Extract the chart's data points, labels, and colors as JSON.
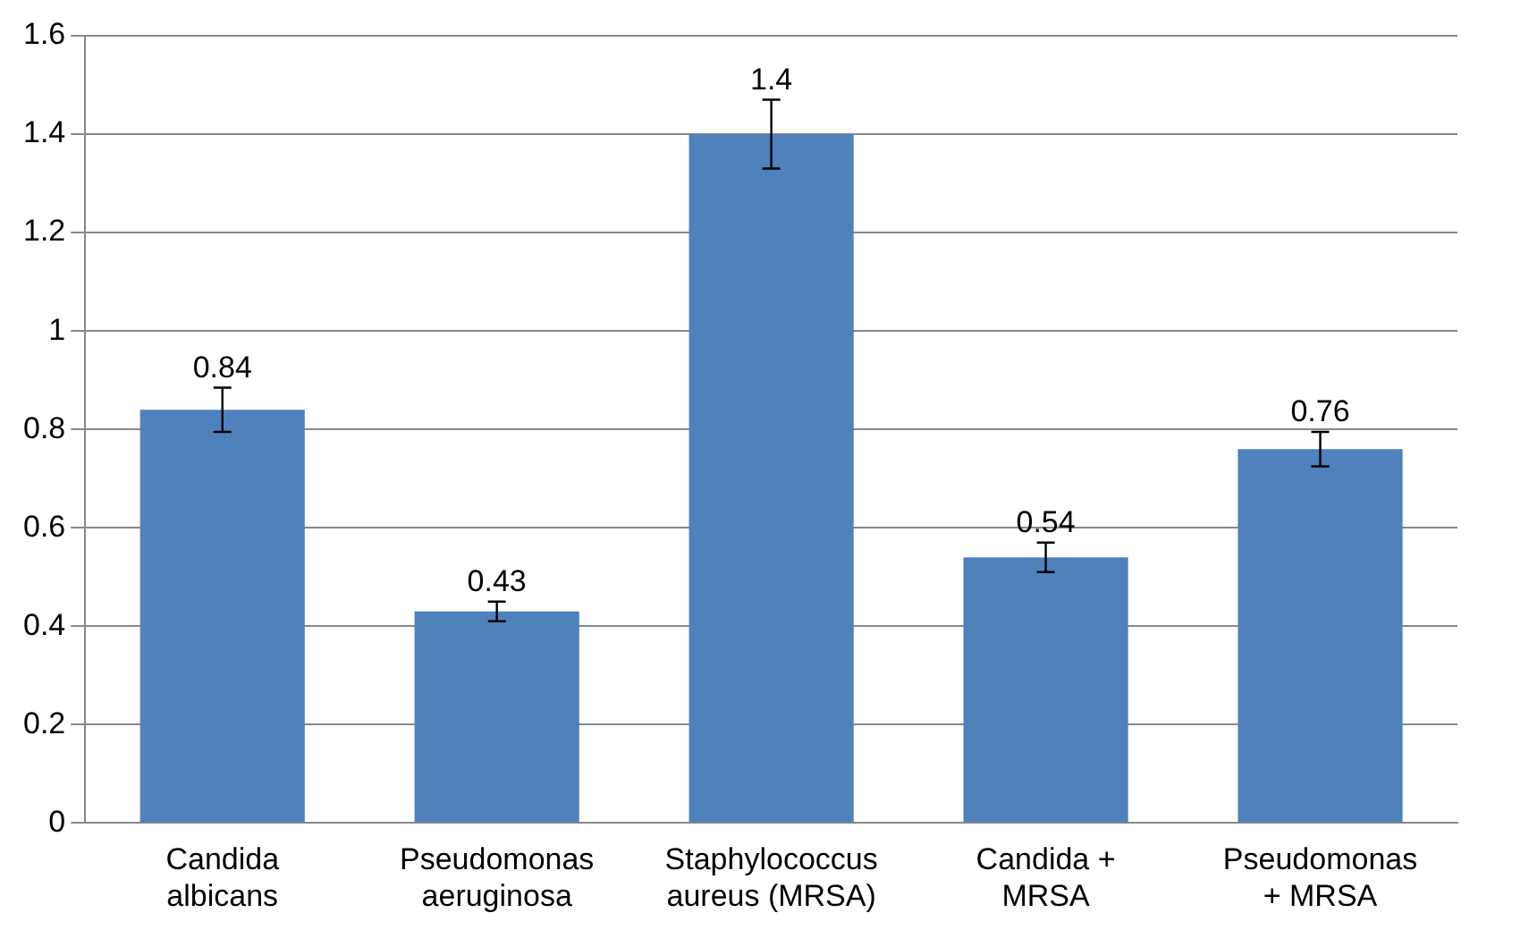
{
  "chart_data": {
    "type": "bar",
    "categories": [
      "Candida\nalbicans",
      "Pseudomonas\naeruginosa",
      "Staphylococcus\naureus (MRSA)",
      "Candida +\nMRSA",
      "Pseudomonas\n+ MRSA"
    ],
    "values": [
      0.84,
      0.43,
      1.4,
      0.54,
      0.76
    ],
    "errors": [
      0.045,
      0.02,
      0.07,
      0.03,
      0.035
    ],
    "color": "#4f81bd",
    "ylim": [
      0,
      1.6
    ],
    "yticks": [
      0,
      0.2,
      0.4,
      0.6,
      0.8,
      1,
      1.2,
      1.4,
      1.6
    ],
    "grid": "y",
    "data_labels": true
  }
}
